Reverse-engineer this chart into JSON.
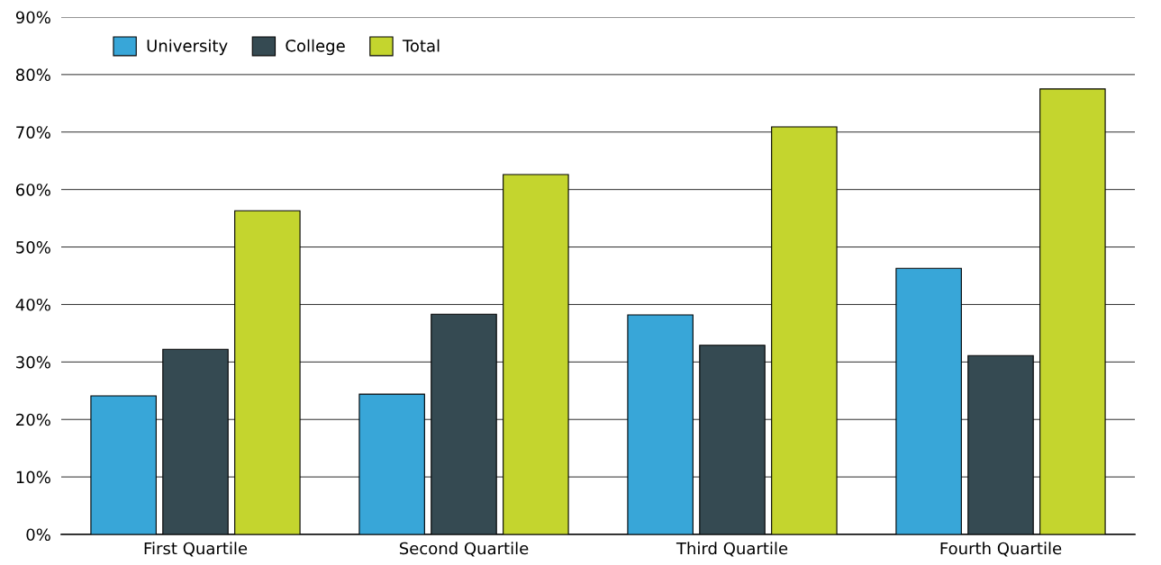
{
  "chart_data": {
    "type": "bar",
    "categories": [
      "First Quartile",
      "Second Quartile",
      "Third Quartile",
      "Fourth Quartile"
    ],
    "series": [
      {
        "name": "University",
        "color": "#38a6d8",
        "values": [
          24.1,
          24.4,
          38.2,
          46.3
        ]
      },
      {
        "name": "College",
        "color": "#354a52",
        "values": [
          32.2,
          38.3,
          32.9,
          31.1
        ]
      },
      {
        "name": "Total",
        "color": "#c4d52e",
        "values": [
          56.3,
          62.6,
          70.9,
          77.5
        ]
      }
    ],
    "ylim": [
      0,
      90
    ],
    "yticks": [
      {
        "value": 0,
        "label": "0%"
      },
      {
        "value": 10,
        "label": "10%"
      },
      {
        "value": 20,
        "label": "20%"
      },
      {
        "value": 30,
        "label": "30%"
      },
      {
        "value": 40,
        "label": "40%"
      },
      {
        "value": 50,
        "label": "50%"
      },
      {
        "value": 60,
        "label": "60%"
      },
      {
        "value": 70,
        "label": "70%"
      },
      {
        "value": 80,
        "label": "80%"
      },
      {
        "value": 90,
        "label": "90%"
      }
    ],
    "grid": "y",
    "legend": "top left"
  }
}
